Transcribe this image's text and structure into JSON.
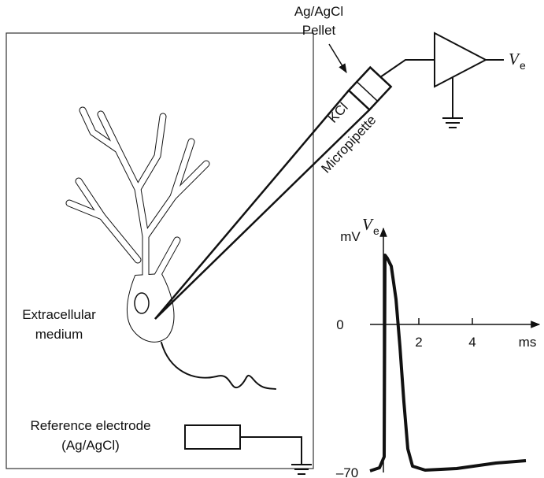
{
  "labels": {
    "pellet_line1": "Ag/AgCl",
    "pellet_line2": "Pellet",
    "kcl": "KCl",
    "micropipette": "Micropipette",
    "medium_line1": "Extracellular",
    "medium_line2": "medium",
    "reference_line1": "Reference electrode",
    "reference_line2": "(Ag/AgCl)",
    "output_symbol": "V",
    "output_subscript": "e"
  },
  "graph": {
    "y_unit": "mV",
    "y_symbol": "V",
    "y_subscript": "e",
    "x_unit": "ms",
    "x_ticks": [
      "2",
      "4"
    ],
    "y_ticks": [
      "0",
      "–70"
    ]
  }
}
